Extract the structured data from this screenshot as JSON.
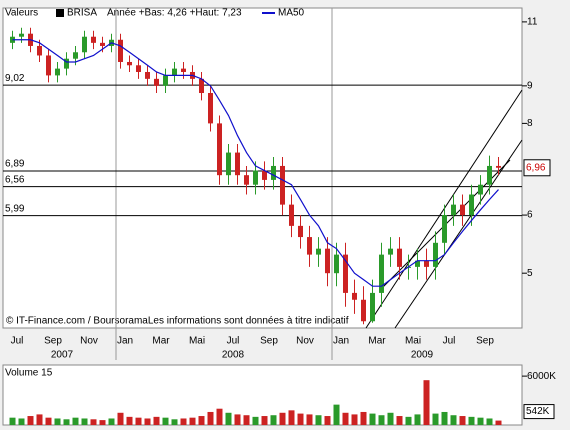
{
  "chart_data": {
    "type": "candlestick",
    "legend": {
      "label": "Valeurs",
      "series_name": "BRISA",
      "range_text": "Année +Bas: 4,26 +Haut: 7,23"
    },
    "open": [
      10.3,
      10.5,
      10.6,
      10.2,
      9.9,
      9.3,
      9.5,
      9.8,
      10.0,
      10.5,
      10.3,
      10.2,
      10.4,
      9.7,
      9.6,
      9.4,
      9.2,
      9.0,
      9.3,
      9.5,
      9.4,
      9.2,
      8.8,
      8.0,
      6.8,
      7.3,
      6.8,
      6.6,
      6.9,
      6.7,
      7.0,
      6.2,
      5.8,
      5.6,
      5.3,
      5.4,
      5.0,
      5.3,
      4.7,
      4.6,
      4.3,
      4.7,
      5.3,
      5.4,
      5.1,
      5.1,
      5.2,
      5.1,
      5.5,
      6.0,
      6.2,
      6.0,
      6.4,
      6.6,
      7.0
    ],
    "high": [
      10.7,
      10.8,
      10.8,
      10.4,
      10.1,
      9.7,
      10.0,
      10.2,
      10.7,
      10.7,
      10.5,
      10.6,
      10.6,
      9.9,
      9.8,
      9.6,
      9.4,
      9.5,
      9.7,
      9.7,
      9.6,
      9.4,
      9.0,
      8.2,
      7.5,
      7.5,
      7.0,
      7.1,
      7.1,
      7.2,
      7.2,
      6.4,
      6.0,
      5.8,
      5.6,
      5.6,
      5.5,
      5.5,
      4.9,
      4.8,
      4.9,
      5.5,
      5.6,
      5.6,
      5.3,
      5.4,
      5.4,
      5.7,
      6.2,
      6.4,
      6.4,
      6.6,
      6.8,
      7.23,
      7.2
    ],
    "low": [
      10.1,
      10.3,
      10.0,
      9.7,
      9.1,
      9.1,
      9.3,
      9.6,
      9.8,
      10.1,
      10.0,
      10.0,
      9.5,
      9.4,
      9.2,
      9.0,
      8.8,
      8.8,
      9.1,
      9.2,
      9.0,
      8.6,
      7.8,
      6.6,
      6.6,
      6.6,
      6.4,
      6.4,
      6.5,
      6.5,
      6.0,
      5.6,
      5.4,
      5.1,
      5.1,
      4.8,
      4.8,
      4.5,
      4.4,
      4.26,
      4.28,
      4.5,
      5.1,
      4.9,
      4.9,
      4.9,
      4.9,
      4.9,
      5.3,
      5.8,
      5.8,
      5.8,
      6.2,
      6.4,
      6.8
    ],
    "close": [
      10.5,
      10.6,
      10.2,
      9.9,
      9.3,
      9.5,
      9.8,
      10.0,
      10.5,
      10.3,
      10.2,
      10.4,
      9.7,
      9.6,
      9.4,
      9.2,
      9.0,
      9.3,
      9.5,
      9.4,
      9.2,
      8.8,
      8.0,
      6.8,
      7.3,
      6.8,
      6.6,
      6.9,
      6.7,
      7.0,
      6.2,
      5.8,
      5.6,
      5.3,
      5.4,
      5.0,
      5.3,
      4.7,
      4.6,
      4.3,
      4.7,
      5.3,
      5.4,
      5.1,
      5.1,
      5.2,
      5.1,
      5.5,
      6.0,
      6.2,
      6.0,
      6.4,
      6.6,
      7.0,
      6.96
    ],
    "up_color": "#2a9a2a",
    "down_color": "#cc2222",
    "ma": {
      "name": "MA50",
      "color": "#1010cc",
      "values": [
        10.4,
        10.4,
        10.4,
        10.3,
        10.1,
        9.9,
        9.7,
        9.7,
        9.8,
        9.9,
        10.1,
        10.3,
        10.2,
        10.0,
        9.8,
        9.6,
        9.4,
        9.3,
        9.3,
        9.3,
        9.3,
        9.2,
        9.0,
        8.6,
        8.2,
        7.7,
        7.3,
        7.0,
        6.9,
        6.8,
        6.7,
        6.6,
        6.3,
        6.0,
        5.8,
        5.5,
        5.4,
        5.2,
        5.0,
        4.9,
        4.8,
        4.8,
        4.9,
        5.0,
        5.1,
        5.2,
        5.2,
        5.2,
        5.3,
        5.5,
        5.7,
        5.9,
        6.1,
        6.3,
        6.5
      ]
    },
    "log_scale": true,
    "ylim": [
      4.21,
      11.49
    ],
    "yticks": [
      5,
      6,
      8,
      9,
      11
    ],
    "levels": [
      {
        "value": 9.02,
        "label": "9,02"
      },
      {
        "value": 6.89,
        "label": "6,89"
      },
      {
        "value": 6.56,
        "label": "6,56"
      },
      {
        "value": 5.99,
        "label": "5,99"
      }
    ],
    "last": {
      "value": 6.96,
      "label": "6,96"
    },
    "months": [
      "Jul",
      "Sep",
      "Nov",
      "Jan",
      "Mar",
      "Mai",
      "Jul",
      "Sep",
      "Nov",
      "Jan",
      "Mar",
      "Mai",
      "Jul",
      "Sep"
    ],
    "years": [
      "2007",
      "2008",
      "2009"
    ],
    "footer": "© IT-Finance.com / BoursoramaLes informations sont données à titre indicatif",
    "volume": {
      "title": "Volume 15",
      "values": [
        900,
        800,
        1100,
        1300,
        900,
        800,
        700,
        900,
        800,
        700,
        600,
        800,
        1500,
        1000,
        900,
        800,
        1000,
        900,
        700,
        800,
        900,
        1100,
        1600,
        2000,
        1500,
        1300,
        1200,
        1000,
        1100,
        1200,
        1500,
        1800,
        1400,
        1300,
        1200,
        1100,
        2500,
        1500,
        1300,
        1600,
        1400,
        1200,
        1500,
        1100,
        1000,
        1300,
        5500,
        1400,
        1600,
        1200,
        1100,
        1000,
        900,
        800,
        542
      ],
      "ylim": [
        0,
        7364
      ],
      "yticks": [
        {
          "value": 6000,
          "label": "6000K"
        }
      ],
      "last_label": "542K"
    }
  }
}
